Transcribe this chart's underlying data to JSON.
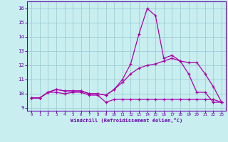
{
  "xlabel": "Windchill (Refroidissement éolien,°C)",
  "background_color": "#c8eef0",
  "grid_color": "#9ecdd4",
  "line_color": "#aa00aa",
  "spine_color": "#6600aa",
  "xlim": [
    -0.5,
    23.5
  ],
  "ylim": [
    8.8,
    16.5
  ],
  "yticks": [
    9,
    10,
    11,
    12,
    13,
    14,
    15,
    16
  ],
  "xticks": [
    0,
    1,
    2,
    3,
    4,
    5,
    6,
    7,
    8,
    9,
    10,
    11,
    12,
    13,
    14,
    15,
    16,
    17,
    18,
    19,
    20,
    21,
    22,
    23
  ],
  "series1_x": [
    0,
    1,
    2,
    3,
    4,
    5,
    6,
    7,
    8,
    9,
    10,
    11,
    12,
    13,
    14,
    15,
    16,
    17,
    18,
    19,
    20,
    21,
    22,
    23
  ],
  "series1_y": [
    9.7,
    9.7,
    10.1,
    10.1,
    10.0,
    10.1,
    10.1,
    9.9,
    9.9,
    9.4,
    9.6,
    9.6,
    9.6,
    9.6,
    9.6,
    9.6,
    9.6,
    9.6,
    9.6,
    9.6,
    9.6,
    9.6,
    9.6,
    9.4
  ],
  "series2_x": [
    0,
    1,
    2,
    3,
    4,
    5,
    6,
    7,
    8,
    9,
    10,
    11,
    12,
    13,
    14,
    15,
    16,
    17,
    18,
    19,
    20,
    21,
    22,
    23
  ],
  "series2_y": [
    9.7,
    9.7,
    10.1,
    10.3,
    10.2,
    10.2,
    10.2,
    10.0,
    10.0,
    9.9,
    10.3,
    11.0,
    12.1,
    14.2,
    16.0,
    15.5,
    12.5,
    12.7,
    12.3,
    11.4,
    10.1,
    10.1,
    9.4,
    9.4
  ],
  "series3_x": [
    0,
    1,
    2,
    3,
    4,
    5,
    6,
    7,
    8,
    9,
    10,
    11,
    12,
    13,
    14,
    15,
    16,
    17,
    18,
    19,
    20,
    21,
    22,
    23
  ],
  "series3_y": [
    9.7,
    9.7,
    10.1,
    10.3,
    10.2,
    10.2,
    10.2,
    10.0,
    10.0,
    9.9,
    10.3,
    10.8,
    11.4,
    11.8,
    12.0,
    12.1,
    12.3,
    12.5,
    12.3,
    12.2,
    12.2,
    11.4,
    10.5,
    9.4
  ]
}
